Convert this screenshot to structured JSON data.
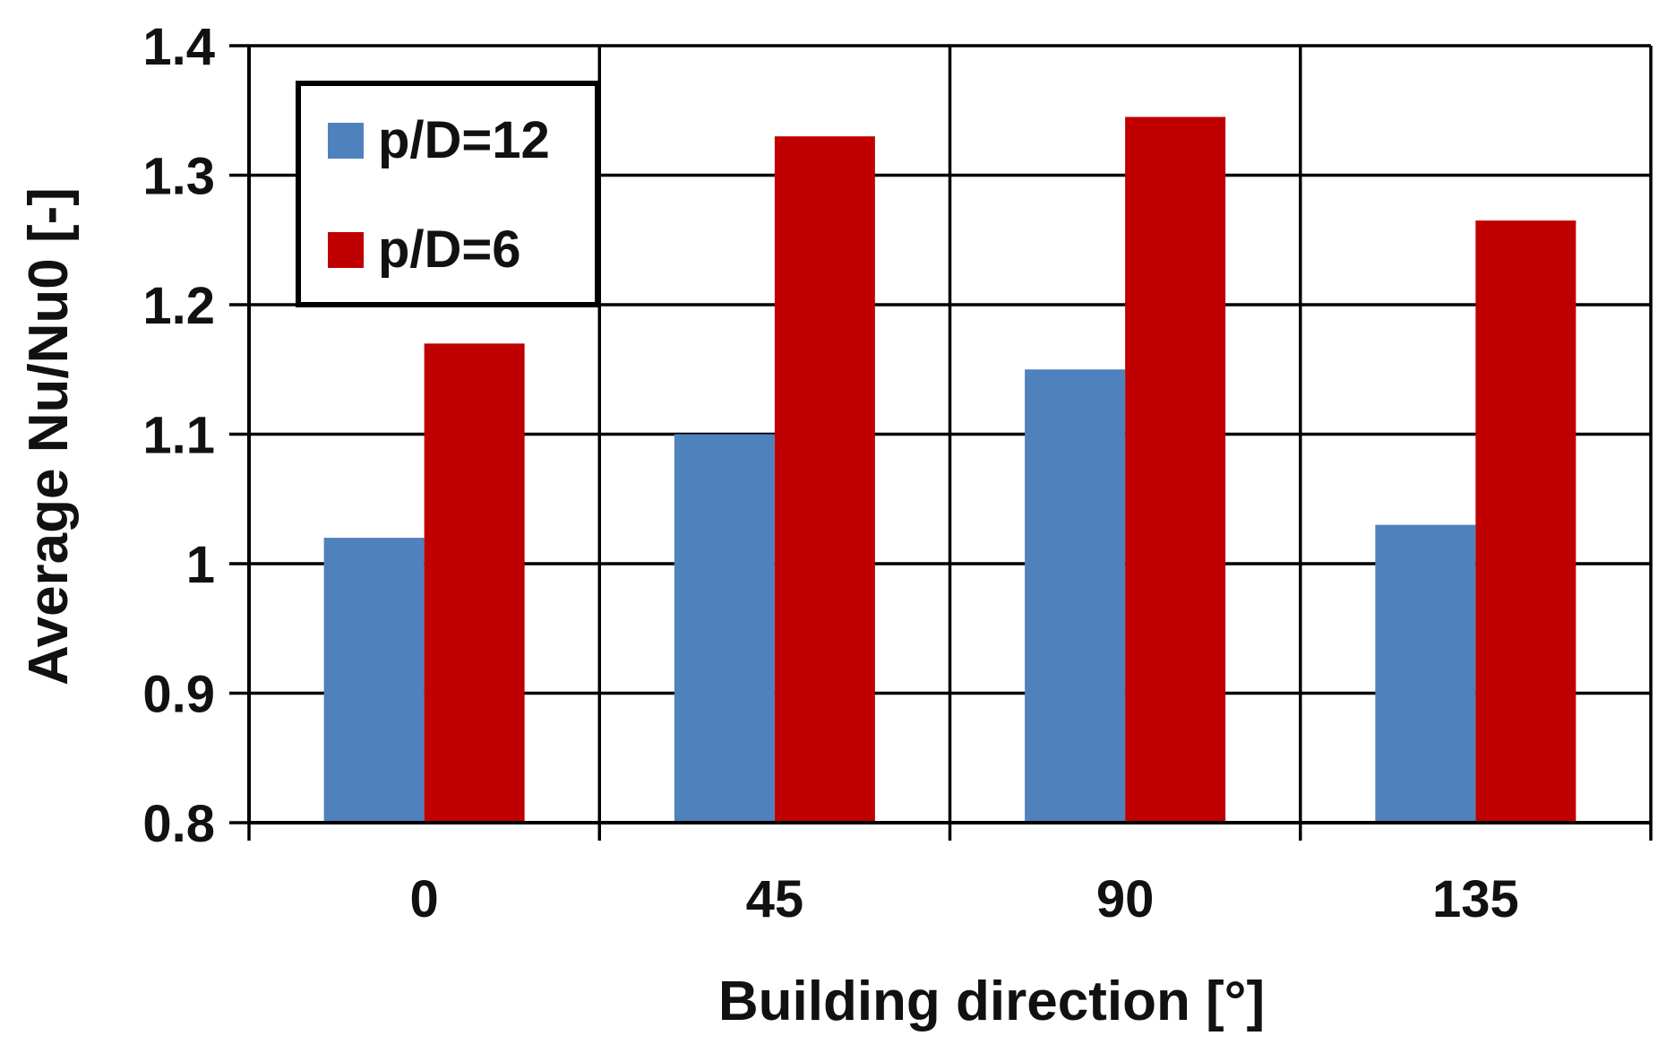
{
  "chart_data": {
    "type": "bar",
    "title": "",
    "xlabel": "Building direction [°]",
    "ylabel": "Average Nu/Nu0 [-]",
    "categories": [
      "0",
      "45",
      "90",
      "135"
    ],
    "ylim": [
      0.8,
      1.4
    ],
    "yticks": [
      "0.8",
      "0.9",
      "1",
      "1.1",
      "1.2",
      "1.3",
      "1.4"
    ],
    "grid": true,
    "legend_position": "top-left",
    "series": [
      {
        "name": "p/D=12",
        "color": "#4f81bd",
        "values": [
          1.02,
          1.1,
          1.15,
          1.03
        ]
      },
      {
        "name": "p/D=6",
        "color": "#c00000",
        "values": [
          1.17,
          1.33,
          1.345,
          1.265
        ]
      }
    ]
  }
}
